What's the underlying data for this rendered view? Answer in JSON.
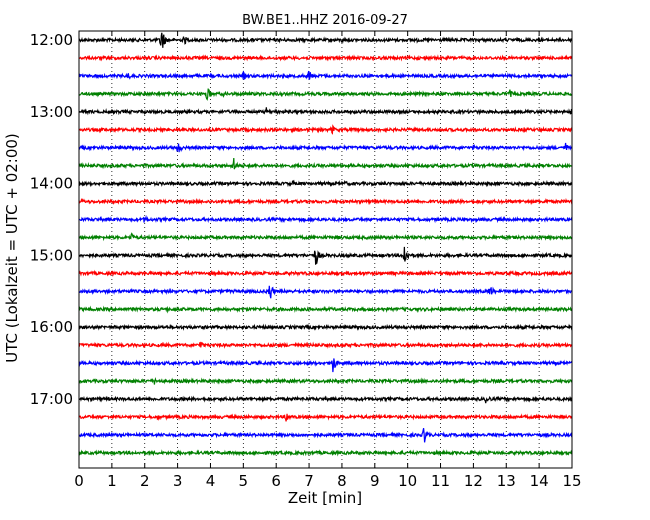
{
  "chart_data": {
    "type": "line",
    "title": "BW.BE1..HHZ 2016-09-27",
    "xlabel": "Zeit  [min]",
    "ylabel": "UTC (Lokalzeit = UTC + 02:00)",
    "xlim": [
      0,
      15
    ],
    "x_ticks": [
      "0",
      "1",
      "2",
      "3",
      "4",
      "5",
      "6",
      "7",
      "8",
      "9",
      "10",
      "11",
      "12",
      "13",
      "14",
      "15"
    ],
    "y_ticks": [
      {
        "label": "12:00",
        "row": 0
      },
      {
        "label": "13:00",
        "row": 4
      },
      {
        "label": "14:00",
        "row": 8
      },
      {
        "label": "15:00",
        "row": 12
      },
      {
        "label": "16:00",
        "row": 16
      },
      {
        "label": "17:00",
        "row": 20
      }
    ],
    "row_minutes": 15,
    "colors": [
      "#000000",
      "#ff0000",
      "#0000ff",
      "#008000"
    ],
    "grid": true,
    "rows": [
      {
        "events": [
          [
            2.5,
            1.0
          ],
          [
            3.2,
            0.35
          ],
          [
            8.0,
            0.2
          ],
          [
            10.3,
            0.15
          ]
        ]
      },
      {
        "events": [
          [
            2.6,
            0.12
          ]
        ]
      },
      {
        "events": [
          [
            1.5,
            0.25
          ],
          [
            2.0,
            0.12
          ],
          [
            5.0,
            0.3
          ],
          [
            5.7,
            0.15
          ],
          [
            7.0,
            0.45
          ],
          [
            9.4,
            0.12
          ],
          [
            12.2,
            0.12
          ]
        ]
      },
      {
        "events": [
          [
            3.9,
            0.55
          ],
          [
            4.4,
            0.18
          ],
          [
            13.1,
            0.3
          ]
        ]
      },
      {
        "events": [
          [
            5.7,
            0.3
          ],
          [
            6.0,
            0.25
          ],
          [
            15.0,
            0.3
          ]
        ]
      },
      {
        "events": [
          [
            7.7,
            0.35
          ],
          [
            13.5,
            0.25
          ]
        ]
      },
      {
        "events": [
          [
            3.0,
            0.5
          ],
          [
            12.0,
            0.2
          ],
          [
            14.8,
            0.35
          ]
        ]
      },
      {
        "events": [
          [
            4.7,
            0.55
          ],
          [
            5.0,
            0.15
          ]
        ]
      },
      {
        "events": [
          [
            6.5,
            0.2
          ],
          [
            8.1,
            0.2
          ]
        ]
      },
      {
        "events": [
          [
            0.1,
            0.2
          ],
          [
            4.9,
            0.12
          ],
          [
            12.0,
            0.15
          ],
          [
            14.2,
            0.25
          ]
        ]
      },
      {
        "events": [
          [
            2.0,
            0.3
          ]
        ]
      },
      {
        "events": [
          [
            1.6,
            0.35
          ]
        ]
      },
      {
        "events": [
          [
            7.2,
            0.75
          ],
          [
            9.9,
            0.8
          ]
        ]
      },
      {
        "events": [
          [
            9.0,
            0.12
          ]
        ]
      },
      {
        "events": [
          [
            5.8,
            0.75
          ],
          [
            12.5,
            0.5
          ]
        ]
      },
      {
        "events": [
          [
            2.7,
            0.15
          ],
          [
            7.7,
            0.15
          ],
          [
            10.8,
            0.12
          ]
        ]
      },
      {
        "events": [
          [
            0.4,
            0.12
          ]
        ]
      },
      {
        "events": [
          [
            3.7,
            0.35
          ]
        ]
      },
      {
        "events": [
          [
            7.7,
            0.85
          ]
        ]
      },
      {
        "events": [
          [
            2.3,
            0.25
          ]
        ]
      },
      {
        "events": [
          [
            12.4,
            0.45
          ]
        ]
      },
      {
        "events": [
          [
            2.4,
            0.2
          ],
          [
            6.3,
            0.45
          ]
        ]
      },
      {
        "events": [
          [
            10.5,
            0.65
          ]
        ]
      },
      {
        "events": []
      }
    ]
  }
}
